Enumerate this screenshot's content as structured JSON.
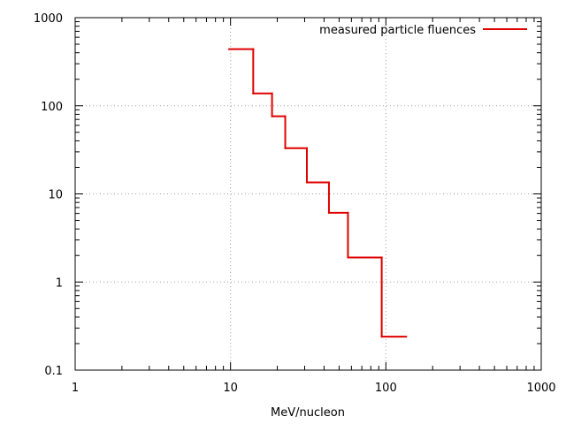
{
  "chart_data": {
    "type": "line",
    "subtype": "step",
    "title": "",
    "xlabel": "MeV/nucleon",
    "ylabel": "",
    "x_scale": "log",
    "y_scale": "log",
    "xlim": [
      1,
      1000
    ],
    "ylim": [
      0.1,
      1000
    ],
    "x_ticks": [
      1,
      10,
      100,
      1000
    ],
    "x_tick_labels": [
      "1",
      "10",
      "100",
      "1000"
    ],
    "y_ticks": [
      0.1,
      1,
      10,
      100,
      1000
    ],
    "y_tick_labels": [
      "0.1",
      "1",
      "10",
      "100",
      "1000"
    ],
    "grid": true,
    "legend_position": "top-right",
    "series": [
      {
        "name": "measured particle fluences",
        "color": "#e00000",
        "bins": [
          {
            "x0": 9.8,
            "x1": 14.0,
            "y": 440
          },
          {
            "x0": 14.0,
            "x1": 18.5,
            "y": 138
          },
          {
            "x0": 18.5,
            "x1": 22.5,
            "y": 76
          },
          {
            "x0": 22.5,
            "x1": 31.0,
            "y": 33
          },
          {
            "x0": 31.0,
            "x1": 43.0,
            "y": 13.5
          },
          {
            "x0": 43.0,
            "x1": 57.0,
            "y": 6.1
          },
          {
            "x0": 57.0,
            "x1": 94.0,
            "y": 1.9
          },
          {
            "x0": 94.0,
            "x1": 135.0,
            "y": 0.24
          }
        ]
      }
    ]
  }
}
